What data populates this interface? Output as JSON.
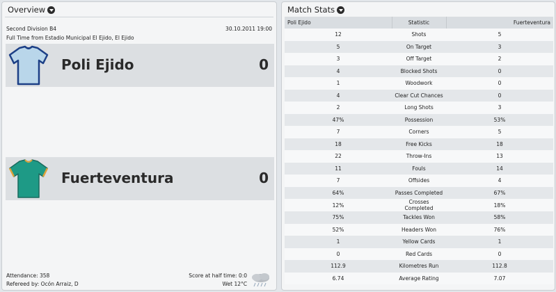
{
  "overview": {
    "title": "Overview",
    "division": "Second Division B4",
    "datetime": "30.10.2011 19:00",
    "full_time": "Full Time from Estadio Municipal El Ejido, El Ejido",
    "home": {
      "name": "Poli Ejido",
      "score": "0",
      "kit_color": "#b9d6ea",
      "kit_trim": "#1c3f86"
    },
    "away": {
      "name": "Fuerteventura",
      "score": "0",
      "kit_color": "#1e9a86",
      "kit_trim": "#e0a23a"
    },
    "attendance": "Attendance: 358",
    "referee": "Refereed by: Ocón Arraiz, D",
    "half_time": "Score at half time: 0:0",
    "weather": "Wet 12°C",
    "weather_icon": "rain-cloud-icon"
  },
  "stats": {
    "title": "Match Stats",
    "headers": {
      "home": "Poli Ejido",
      "statistic": "Statistic",
      "away": "Fuerteventura"
    },
    "rows": [
      {
        "home": "12",
        "stat": "Shots",
        "away": "5"
      },
      {
        "home": "5",
        "stat": "On Target",
        "away": "3"
      },
      {
        "home": "3",
        "stat": "Off Target",
        "away": "2"
      },
      {
        "home": "4",
        "stat": "Blocked Shots",
        "away": "0"
      },
      {
        "home": "1",
        "stat": "Woodwork",
        "away": "0"
      },
      {
        "home": "4",
        "stat": "Clear Cut Chances",
        "away": "0"
      },
      {
        "home": "2",
        "stat": "Long Shots",
        "away": "3"
      },
      {
        "home": "47%",
        "stat": "Possession",
        "away": "53%"
      },
      {
        "home": "7",
        "stat": "Corners",
        "away": "5"
      },
      {
        "home": "18",
        "stat": "Free Kicks",
        "away": "18"
      },
      {
        "home": "22",
        "stat": "Throw-Ins",
        "away": "13"
      },
      {
        "home": "11",
        "stat": "Fouls",
        "away": "14"
      },
      {
        "home": "7",
        "stat": "Offsides",
        "away": "4"
      },
      {
        "home": "64%",
        "stat": "Passes Completed",
        "away": "67%"
      },
      {
        "home": "12%",
        "stat": "Crosses Completed",
        "away": "18%"
      },
      {
        "home": "75%",
        "stat": "Tackles Won",
        "away": "58%"
      },
      {
        "home": "52%",
        "stat": "Headers Won",
        "away": "76%"
      },
      {
        "home": "1",
        "stat": "Yellow Cards",
        "away": "1"
      },
      {
        "home": "0",
        "stat": "Red Cards",
        "away": "0"
      },
      {
        "home": "112.9",
        "stat": "Kilometres Run",
        "away": "112.8"
      },
      {
        "home": "6.74",
        "stat": "Average Rating",
        "away": "7.07"
      }
    ]
  }
}
